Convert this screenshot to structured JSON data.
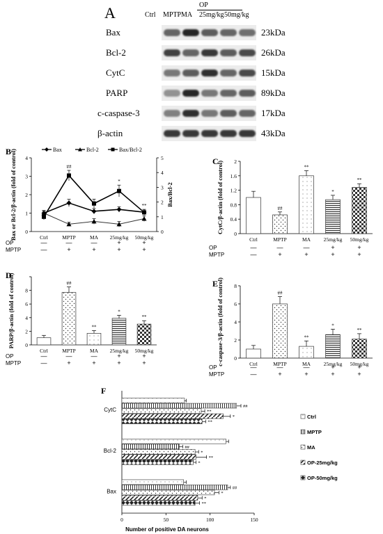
{
  "panelA": {
    "letter": "A",
    "lanes": [
      "Ctrl",
      "MPTP",
      "MA",
      "25mg/kg",
      "50mg/kg"
    ],
    "op_group_label": "OP",
    "proteins": [
      {
        "name": "Bax",
        "size": "23kDa",
        "intensity": [
          0.55,
          0.9,
          0.6,
          0.55,
          0.5
        ]
      },
      {
        "name": "Bcl-2",
        "size": "26kDa",
        "intensity": [
          0.75,
          0.55,
          0.8,
          0.6,
          0.7
        ]
      },
      {
        "name": "CytC",
        "size": "15kDa",
        "intensity": [
          0.45,
          0.6,
          0.85,
          0.55,
          0.7
        ]
      },
      {
        "name": "PARP",
        "size": "89kDa",
        "intensity": [
          0.3,
          0.9,
          0.45,
          0.55,
          0.6
        ]
      },
      {
        "name": "c-caspase-3",
        "size": "17kDa",
        "intensity": [
          0.4,
          0.85,
          0.45,
          0.6,
          0.55
        ]
      },
      {
        "name": "β-actin",
        "size": "43kDa",
        "intensity": [
          0.8,
          0.8,
          0.8,
          0.8,
          0.8
        ]
      }
    ]
  },
  "treat_rows": {
    "op_label": "OP",
    "mptp_label": "MPTP",
    "op": [
      "—",
      "—",
      "—",
      "+",
      "+"
    ],
    "mptp": [
      "—",
      "+",
      "+",
      "+",
      "+"
    ]
  },
  "chart_data": [
    {
      "panel": "B",
      "type": "line",
      "categories": [
        "Ctrl",
        "MPTP",
        "MA",
        "25mg/kg",
        "50mg/kg"
      ],
      "ylabel": "Bax or Bcl-2/β-actin (fold of control)",
      "y2label": "Bax/Bcl-2",
      "ylim": [
        0,
        4
      ],
      "y2lim": [
        0,
        5
      ],
      "legend_position": "top",
      "series": [
        {
          "name": "Bax",
          "axis": "left",
          "values": [
            1.0,
            1.55,
            1.1,
            1.2,
            1.05
          ],
          "errors": [
            0.15,
            0.2,
            0.15,
            0.15,
            0.15
          ],
          "marker": "diamond",
          "sig": [
            "",
            "",
            "**",
            "",
            "**"
          ]
        },
        {
          "name": "Bcl-2",
          "axis": "left",
          "values": [
            1.0,
            0.4,
            0.55,
            0.4,
            0.7
          ],
          "errors": [
            0.1,
            0.1,
            0.15,
            0.15,
            0.15
          ],
          "marker": "triangle",
          "sig": [
            "",
            "",
            "",
            "",
            ""
          ]
        },
        {
          "name": "Bax/Bcl-2",
          "axis": "right",
          "values": [
            1.0,
            3.8,
            1.9,
            2.75,
            1.3
          ],
          "errors": [
            0.2,
            0.35,
            0.3,
            0.4,
            0.2
          ],
          "marker": "square",
          "sig": [
            "",
            "##",
            "",
            "*",
            ""
          ]
        }
      ]
    },
    {
      "panel": "C",
      "type": "bar",
      "categories": [
        "Ctrl",
        "MPTP",
        "MA",
        "25mg/kg",
        "50mg/kg"
      ],
      "values": [
        1.0,
        0.52,
        1.6,
        0.94,
        1.28
      ],
      "errors": [
        0.17,
        0.08,
        0.14,
        0.12,
        0.1
      ],
      "sig": [
        "",
        "##",
        "**",
        "*",
        "**"
      ],
      "ylabel": "CytC/β-actin (fold of control)",
      "ylim": [
        0,
        2.0
      ],
      "yticks": [
        0,
        0.4,
        0.8,
        1.2,
        1.6,
        2.0
      ],
      "ytick_labels": [
        "0",
        "0.4",
        "0.8",
        "1.2",
        "1.6",
        "2"
      ]
    },
    {
      "panel": "D",
      "type": "bar",
      "categories": [
        "Ctrl",
        "MPTP",
        "MA",
        "25mg/kg",
        "50mg/kg"
      ],
      "values": [
        1.05,
        7.7,
        1.7,
        3.9,
        3.05
      ],
      "errors": [
        0.35,
        0.8,
        0.4,
        0.45,
        0.5
      ],
      "sig": [
        "",
        "##",
        "**",
        "*",
        "**"
      ],
      "ylabel": "PARP/β-actin (fold of control)",
      "ylim": [
        0,
        10
      ],
      "yticks": [
        0,
        2,
        4,
        6,
        8,
        10
      ],
      "ytick_labels": [
        "0",
        "2",
        "4",
        "6",
        "8",
        ""
      ]
    },
    {
      "panel": "E",
      "type": "bar",
      "categories": [
        "Ctrl",
        "MPTP",
        "MA",
        "25mg/kg",
        "50mg/kg"
      ],
      "values": [
        1.0,
        6.0,
        1.3,
        2.6,
        2.1
      ],
      "errors": [
        0.4,
        0.8,
        0.6,
        0.6,
        0.6
      ],
      "sig": [
        "",
        "##",
        "**",
        "*",
        "**"
      ],
      "ylabel": "c-caspase-3/β-actin (fold of control)",
      "ylim": [
        0,
        8
      ],
      "yticks": [
        0,
        2,
        4,
        6,
        8
      ],
      "ytick_labels": [
        "0",
        "2",
        "4",
        "6",
        "8"
      ]
    },
    {
      "panel": "F",
      "type": "bar",
      "orientation": "horizontal",
      "categories": [
        "CytC",
        "Bcl-2",
        "Bax"
      ],
      "xlabel": "Number of positive DA neurons",
      "xlim": [
        0,
        150
      ],
      "xticks": [
        0,
        50,
        100,
        150
      ],
      "legend_position": "right",
      "series": [
        {
          "name": "Ctrl",
          "values": [
            71,
            118,
            70
          ],
          "errors": [
            2,
            3,
            3
          ],
          "sig": [
            "",
            "",
            ""
          ]
        },
        {
          "name": "MPTP",
          "values": [
            130,
            65,
            120
          ],
          "errors": [
            5,
            4,
            3
          ],
          "sig": [
            "##",
            "##",
            "##"
          ]
        },
        {
          "name": "MA",
          "values": [
            90,
            83,
            105
          ],
          "errors": [
            4,
            4,
            5
          ],
          "sig": [
            "**",
            "*",
            "*"
          ]
        },
        {
          "name": "OP-25mg/kg",
          "values": [
            115,
            84,
            86
          ],
          "errors": [
            8,
            12,
            5
          ],
          "sig": [
            "*",
            "**",
            "*"
          ]
        },
        {
          "name": "OP-50mg/kg",
          "values": [
            91,
            81,
            83
          ],
          "errors": [
            4,
            3,
            5
          ],
          "sig": [
            "**",
            "*",
            "**"
          ]
        }
      ]
    }
  ]
}
